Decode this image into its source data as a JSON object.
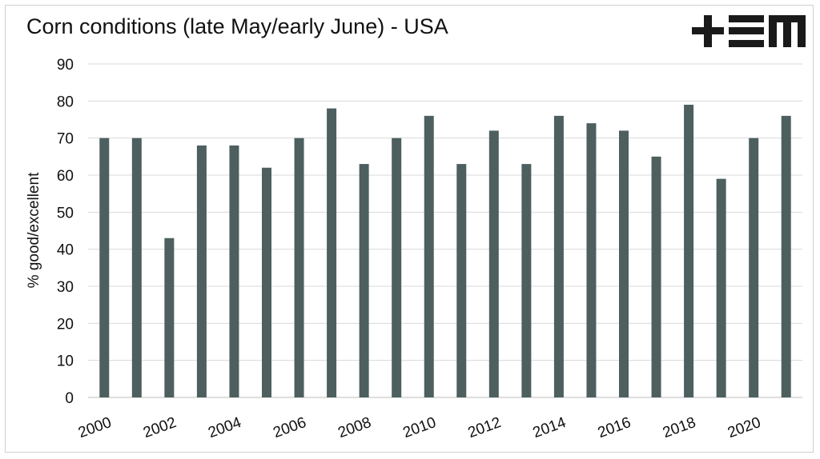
{
  "title": "Corn conditions (late May/early June) - USA",
  "logo": {
    "text": "+EM",
    "color": "#1a1a1a"
  },
  "chart_data": {
    "type": "bar",
    "title": "Corn conditions (late May/early June) - USA",
    "xlabel": "",
    "ylabel": "% good/excellent",
    "ylim": [
      0,
      90
    ],
    "yticks": [
      0,
      10,
      20,
      30,
      40,
      50,
      60,
      70,
      80,
      90
    ],
    "grid": true,
    "bar_color": "#4d5f5f",
    "categories": [
      "2000",
      "2001",
      "2002",
      "2003",
      "2004",
      "2005",
      "2006",
      "2007",
      "2008",
      "2009",
      "2010",
      "2011",
      "2012",
      "2013",
      "2014",
      "2015",
      "2016",
      "2017",
      "2018",
      "2019",
      "2020",
      "2021"
    ],
    "x_tick_labels": [
      "2000",
      "2002",
      "2004",
      "2006",
      "2008",
      "2010",
      "2012",
      "2014",
      "2016",
      "2018",
      "2020"
    ],
    "values": [
      70,
      70,
      43,
      68,
      68,
      62,
      70,
      78,
      63,
      70,
      76,
      63,
      72,
      63,
      76,
      74,
      72,
      65,
      79,
      59,
      70,
      76
    ]
  }
}
